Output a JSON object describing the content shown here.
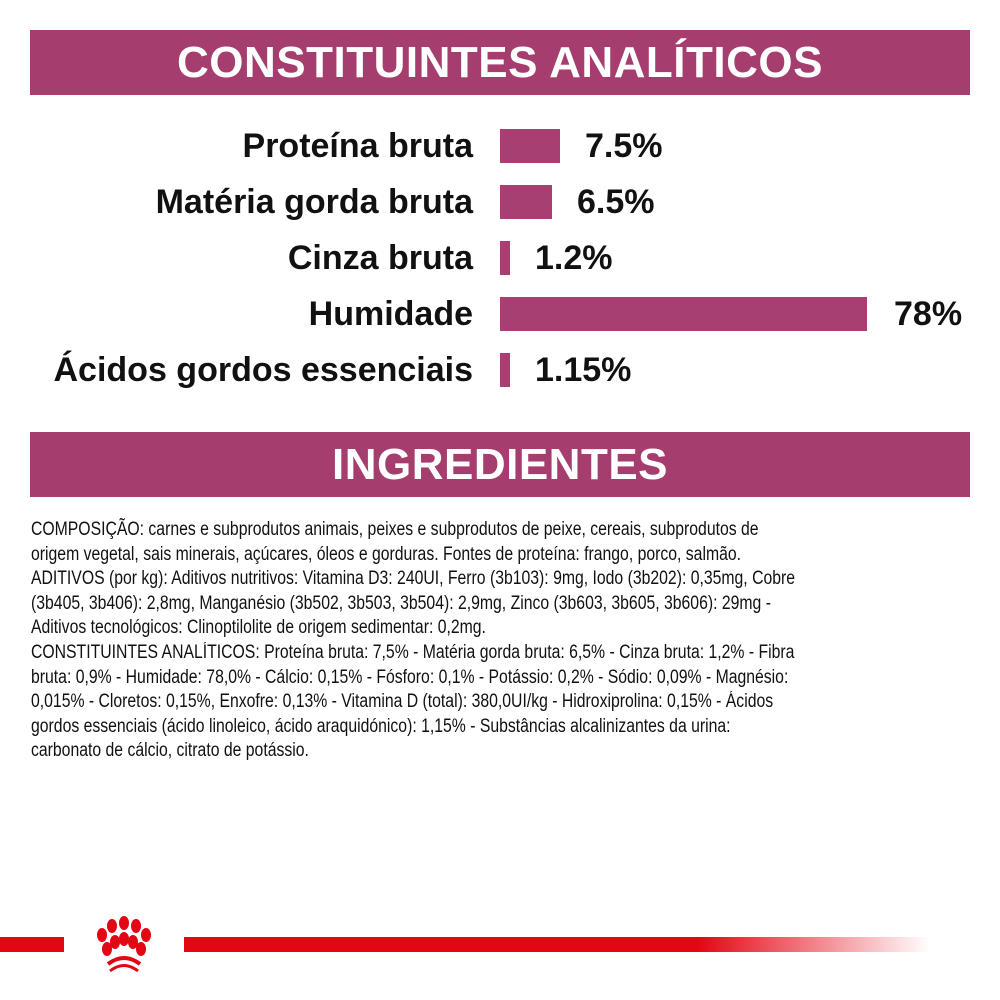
{
  "colors": {
    "header": "#a63d6f",
    "bar": "#a83f73",
    "brand_red": "#e30613"
  },
  "sections": {
    "analytical_title": "CONSTITUINTES ANALÍTICOS",
    "ingredients_title": "INGREDIENTES"
  },
  "chart_data": {
    "type": "bar",
    "orientation": "horizontal",
    "categories": [
      "Proteína bruta",
      "Matéria gorda bruta",
      "Cinza bruta",
      "Humidade",
      "Ácidos gordos essenciais"
    ],
    "values": [
      7.5,
      6.5,
      1.2,
      78,
      1.15
    ],
    "value_labels": [
      "7.5%",
      "6.5%",
      "1.2%",
      "78%",
      "1.15%"
    ],
    "unit": "%",
    "grid": false
  },
  "ingredients": {
    "lines": [
      "COMPOSIÇÃO: carnes e subprodutos animais, peixes e subprodutos de peixe, cereais, subprodutos de",
      "origem vegetal, sais minerais, açúcares, óleos e gorduras. Fontes de proteína: frango, porco, salmão.",
      "ADITIVOS (por kg): Aditivos nutritivos: Vitamina D3: 240UI, Ferro (3b103): 9mg, Iodo (3b202): 0,35mg, Cobre",
      "(3b405, 3b406): 2,8mg, Manganésio (3b502, 3b503, 3b504): 2,9mg, Zinco (3b603, 3b605, 3b606): 29mg -",
      "Aditivos tecnológicos: Clinoptilolite de origem sedimentar: 0,2mg.",
      "CONSTITUINTES ANALÍTICOS: Proteína bruta: 7,5% - Matéria gorda bruta: 6,5% - Cinza bruta: 1,2% - Fibra",
      "bruta: 0,9% - Humidade: 78,0% - Cálcio: 0,15% - Fósforo: 0,1% - Potássio: 0,2% - Sódio: 0,09% - Magnésio:",
      "0,015% - Cloretos: 0,15%, Enxofre: 0,13% - Vitamina D (total): 380,0UI/kg - Hidroxiprolina: 0,15% - Ácidos",
      "gordos essenciais (ácido linoleico, ácido araquidónico): 1,15% - Substâncias alcalinizantes da urina:",
      "carbonato de cálcio, citrato de potássio."
    ]
  },
  "footer": {
    "logo": "Royal Canin crown"
  }
}
